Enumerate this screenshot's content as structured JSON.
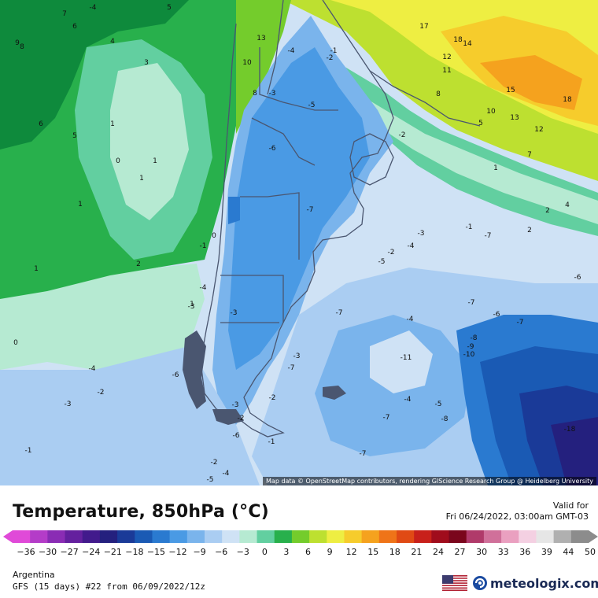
{
  "title": "Temperature, 850hPa (°C)",
  "valid": {
    "label": "Valid for",
    "datetime": "Fri 06/24/2022, 03:00am GMT-03"
  },
  "attribution": "Map data © OpenStreetMap contributors, rendering GIScience Research Group @ Heidelberg University",
  "region": "Argentina",
  "model_run": "GFS (15 days) #22 from  06/09/2022/12z",
  "brand": {
    "name": "meteologix.com",
    "logo_icon": "meteologix-swirl-icon",
    "flag_icon": "us-flag-icon"
  },
  "scale": {
    "ticks": [
      "−36",
      "−30",
      "−27",
      "−24",
      "−21",
      "−18",
      "−15",
      "−12",
      "−9",
      "−6",
      "−3",
      "0",
      "3",
      "6",
      "9",
      "12",
      "15",
      "18",
      "21",
      "24",
      "27",
      "30",
      "33",
      "36",
      "39",
      "44",
      "50"
    ],
    "colors": [
      "#e04ad8",
      "#b43cc8",
      "#8a2cb4",
      "#64209e",
      "#421a8c",
      "#24207e",
      "#1a3a98",
      "#1a5ab4",
      "#2a7ad0",
      "#4a9ae4",
      "#7ab4ec",
      "#aacdf2",
      "#cfe2f5",
      "#b6ead2",
      "#62cfa0",
      "#28b04c",
      "#74cc2c",
      "#bde030",
      "#eeee42",
      "#f6cc2c",
      "#f5a21e",
      "#ef7418",
      "#e04a14",
      "#c8201a",
      "#a00c1c",
      "#7a061c",
      "#b03a6a",
      "#d0709a",
      "#eaa0c0",
      "#f4d0e2",
      "#e6e6e6",
      "#b0b0b0",
      "#8c8c8c"
    ]
  },
  "map_labels": [
    {
      "t": "7"
    },
    {
      "t": "5"
    },
    {
      "t": "6"
    },
    {
      "t": "9"
    },
    {
      "t": "8"
    },
    {
      "t": "4"
    },
    {
      "t": "3"
    },
    {
      "t": "13"
    },
    {
      "t": "10"
    },
    {
      "t": "8"
    },
    {
      "t": "-4"
    },
    {
      "t": "-1"
    },
    {
      "t": "-2"
    },
    {
      "t": "-3"
    },
    {
      "t": "17"
    },
    {
      "t": "18"
    },
    {
      "t": "14"
    },
    {
      "t": "12"
    },
    {
      "t": "11"
    },
    {
      "t": "8"
    },
    {
      "t": "15"
    },
    {
      "t": "18"
    },
    {
      "t": "10"
    },
    {
      "t": "13"
    },
    {
      "t": "5"
    },
    {
      "t": "12"
    },
    {
      "t": "7"
    },
    {
      "t": "1"
    },
    {
      "t": "2"
    },
    {
      "t": "4"
    },
    {
      "t": "2"
    },
    {
      "t": "-5"
    },
    {
      "t": "-6"
    },
    {
      "t": "-2"
    },
    {
      "t": "6"
    },
    {
      "t": "5"
    },
    {
      "t": "1"
    },
    {
      "t": "0"
    },
    {
      "t": "1"
    },
    {
      "t": "1"
    },
    {
      "t": "1"
    },
    {
      "t": "2"
    },
    {
      "t": "1"
    },
    {
      "t": "-7"
    },
    {
      "t": "-1"
    },
    {
      "t": "-7"
    },
    {
      "t": "0"
    },
    {
      "t": "-3"
    },
    {
      "t": "-1"
    },
    {
      "t": "-4"
    },
    {
      "t": "-2"
    },
    {
      "t": "-5"
    },
    {
      "t": "-6"
    },
    {
      "t": "-4"
    },
    {
      "t": "-3"
    },
    {
      "t": "1"
    },
    {
      "t": "0"
    },
    {
      "t": "-3"
    },
    {
      "t": "-7"
    },
    {
      "t": "-7"
    },
    {
      "t": "-4"
    },
    {
      "t": "-6"
    },
    {
      "t": "-7"
    },
    {
      "t": "-8"
    },
    {
      "t": "-9"
    },
    {
      "t": "-10"
    },
    {
      "t": "-11"
    },
    {
      "t": "-3"
    },
    {
      "t": "-7"
    },
    {
      "t": "-6"
    },
    {
      "t": "-4"
    },
    {
      "t": "-2"
    },
    {
      "t": "-3"
    },
    {
      "t": "-2"
    },
    {
      "t": "-3"
    },
    {
      "t": "-4"
    },
    {
      "t": "-2"
    },
    {
      "t": "-5"
    },
    {
      "t": "-7"
    },
    {
      "t": "-8"
    },
    {
      "t": "-6"
    },
    {
      "t": "-1"
    },
    {
      "t": "-2"
    },
    {
      "t": "-4"
    },
    {
      "t": "-5"
    },
    {
      "t": "-7"
    },
    {
      "t": "-18"
    },
    {
      "t": "-1"
    },
    {
      "t": "-4"
    }
  ]
}
